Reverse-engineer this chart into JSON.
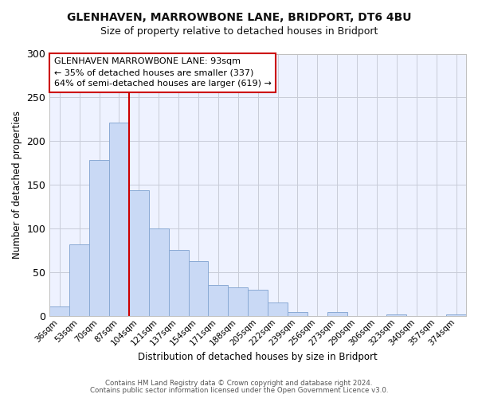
{
  "title": "GLENHAVEN, MARROWBONE LANE, BRIDPORT, DT6 4BU",
  "subtitle": "Size of property relative to detached houses in Bridport",
  "xlabel": "Distribution of detached houses by size in Bridport",
  "ylabel": "Number of detached properties",
  "bar_labels": [
    "36sqm",
    "53sqm",
    "70sqm",
    "87sqm",
    "104sqm",
    "121sqm",
    "137sqm",
    "154sqm",
    "171sqm",
    "188sqm",
    "205sqm",
    "222sqm",
    "239sqm",
    "256sqm",
    "273sqm",
    "290sqm",
    "306sqm",
    "323sqm",
    "340sqm",
    "357sqm",
    "374sqm"
  ],
  "bar_values": [
    11,
    82,
    178,
    221,
    144,
    100,
    75,
    63,
    35,
    33,
    30,
    15,
    4,
    0,
    4,
    0,
    0,
    2,
    0,
    0,
    2
  ],
  "bar_color": "#c9d9f5",
  "bar_edge_color": "#8aaad4",
  "ylim": [
    0,
    300
  ],
  "yticks": [
    0,
    50,
    100,
    150,
    200,
    250,
    300
  ],
  "annotation_line1": "GLENHAVEN MARROWBONE LANE: 93sqm",
  "annotation_line2": "← 35% of detached houses are smaller (337)",
  "annotation_line3": "64% of semi-detached houses are larger (619) →",
  "vline_x": 3.5,
  "vline_color": "#cc0000",
  "footer_line1": "Contains HM Land Registry data © Crown copyright and database right 2024.",
  "footer_line2": "Contains public sector information licensed under the Open Government Licence v3.0.",
  "fig_bg_color": "#ffffff",
  "plot_bg_color": "#eef2ff",
  "grid_color": "#c8ccd8",
  "title_fontsize": 10,
  "subtitle_fontsize": 9
}
